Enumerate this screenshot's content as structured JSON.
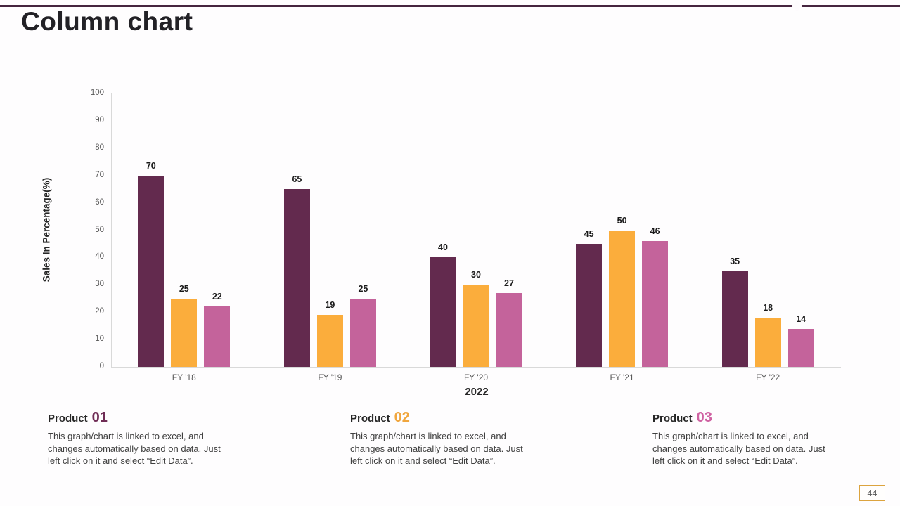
{
  "slide": {
    "title": "Column chart",
    "page_number": "44"
  },
  "chart_data": {
    "type": "bar",
    "title": "",
    "categories": [
      "FY '18",
      "FY '19",
      "FY '20",
      "FY '21",
      "FY '22"
    ],
    "series": [
      {
        "name": "Product 01",
        "color": "#632a4e",
        "values": [
          70,
          65,
          40,
          45,
          35
        ]
      },
      {
        "name": "Product 02",
        "color": "#fbad3c",
        "values": [
          25,
          19,
          30,
          50,
          18
        ]
      },
      {
        "name": "Product 03",
        "color": "#c4639b",
        "values": [
          22,
          25,
          27,
          46,
          14
        ]
      }
    ],
    "xlabel": "2022",
    "ylabel": "Sales In Percentage(%)",
    "ylim": [
      0,
      100
    ],
    "ytick_step": 10,
    "grid": false,
    "legend": "none",
    "bar_labels": true
  },
  "theme": {
    "top_line_color": "#46253f",
    "axis_line_color": "#d9d9d9",
    "tick_text_color": "#595959",
    "value_label_color": "#1a1a1a",
    "page_box_border_color": "#dca43f"
  },
  "products": [
    {
      "label": "Product",
      "number": "01",
      "color": "#6f2c55",
      "lines": [
        "This graph/chart is linked to excel, and",
        "changes automatically based on data. Just",
        "left click on it and select “Edit Data”."
      ]
    },
    {
      "label": "Product",
      "number": "02",
      "color": "#f0a63e",
      "lines": [
        "This graph/chart is linked to excel, and",
        "changes automatically based on data. Just",
        "left click on it and select “Edit Data”."
      ]
    },
    {
      "label": "Product",
      "number": "03",
      "color": "#cf62a2",
      "lines": [
        "This graph/chart is linked to excel, and",
        "changes automatically based on data. Just",
        "left click on it and select “Edit Data”."
      ]
    }
  ]
}
